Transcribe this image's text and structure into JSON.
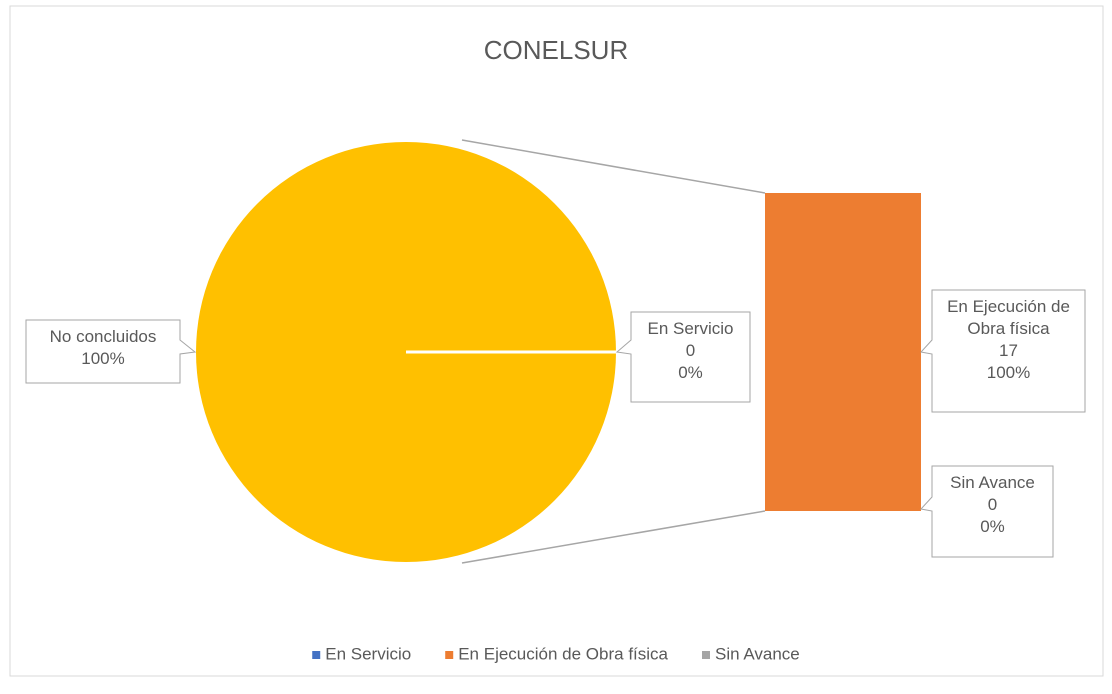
{
  "chart_data": {
    "type": "bar-of-pie",
    "title": "CONELSUR",
    "series": [
      {
        "name": "En Servicio",
        "color": "#4472c4",
        "value": 0,
        "percent": 0,
        "percent_label": "0%",
        "in_bar": false
      },
      {
        "name": "En Ejecución de Obra física",
        "color": "#ed7d31",
        "value": 17,
        "percent": 100,
        "percent_label": "100%",
        "in_bar": true
      },
      {
        "name": "Sin Avance",
        "color": "#a5a5a5",
        "value": 0,
        "percent": 0,
        "percent_label": "0%",
        "in_bar": true
      }
    ],
    "group": {
      "name": "No concluidos",
      "color": "#ffc000",
      "percent": 100,
      "percent_label": "100%"
    },
    "legend": "bottom"
  }
}
